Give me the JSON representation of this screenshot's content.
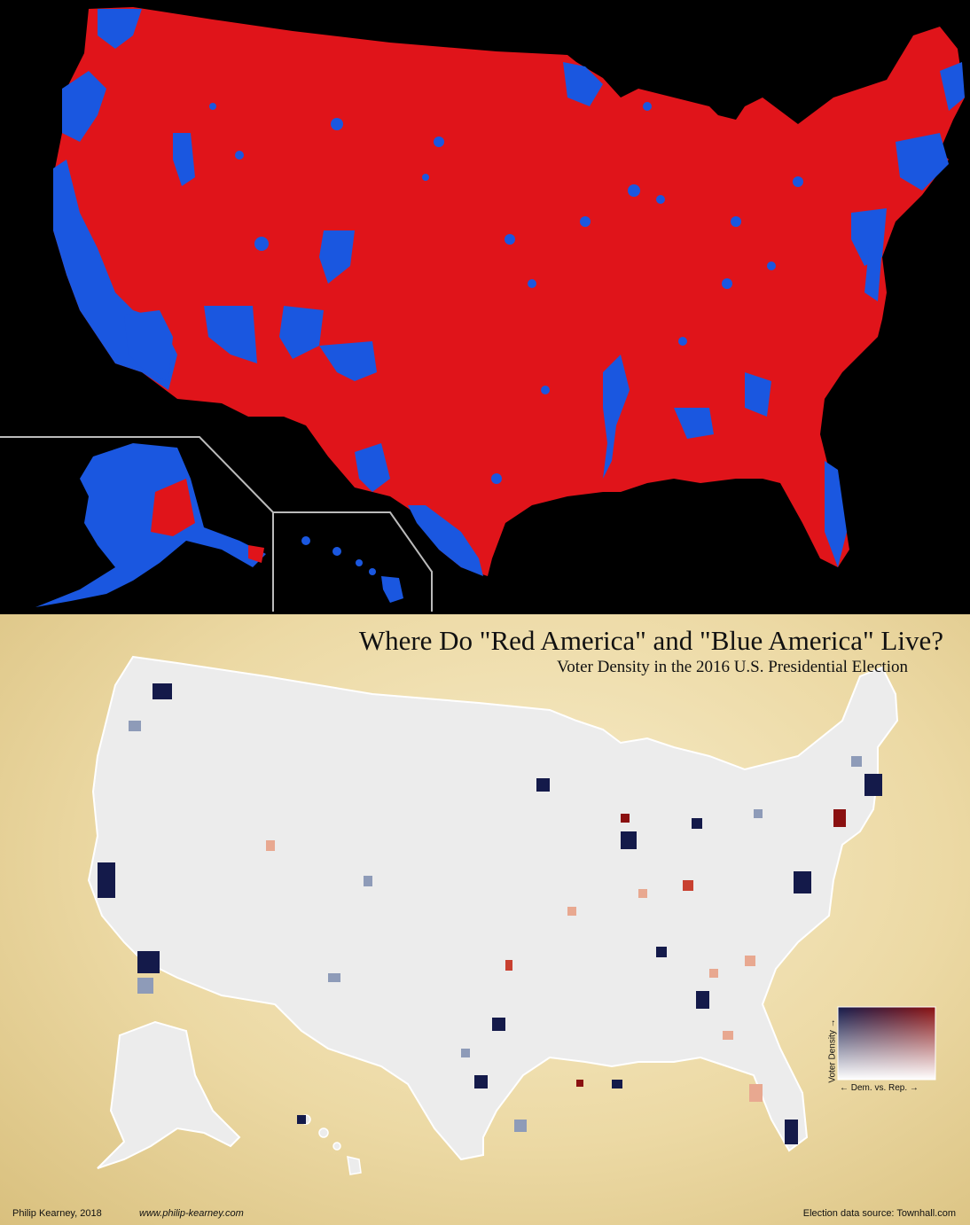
{
  "title": "Where Do \"Red America\" and \"Blue America\" Live?",
  "subtitle": "Voter Density in the 2016 U.S. Presidential Election",
  "credit": "Philip Kearney, 2018",
  "website": "www.philip-kearney.com",
  "source": "Election data source:  Townhall.com",
  "legend": {
    "y_label": "Voter Density →",
    "x_label": "← Dem. vs. Rep. →"
  },
  "colors": {
    "republican": "#e0141a",
    "democrat": "#1a57e0",
    "dem_dense": "#141a4a",
    "rep_dense": "#8a1010",
    "county_light": "#ededed",
    "background_top": "#000000"
  }
}
